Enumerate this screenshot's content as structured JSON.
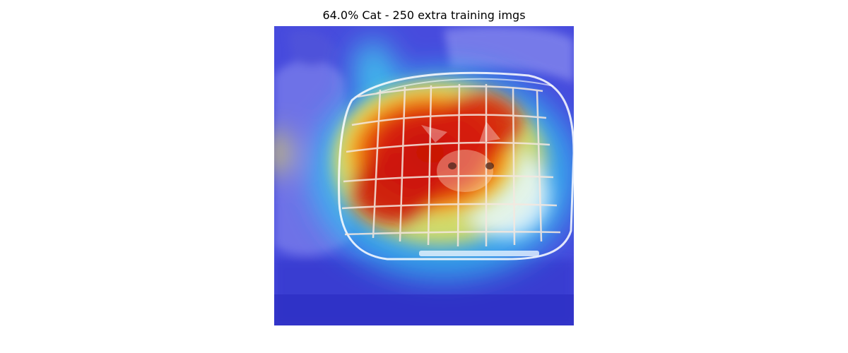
{
  "figure": {
    "title": "64.0% Cat - 250 extra training imgs",
    "colormap": "jet",
    "colors": {
      "background": "#ffffff",
      "cold": "#2a2ee0",
      "hot": "#d01808"
    }
  },
  "image": {
    "subject": "cat inside a pet carrier on a car seat",
    "overlay": "class-activation heatmap"
  }
}
